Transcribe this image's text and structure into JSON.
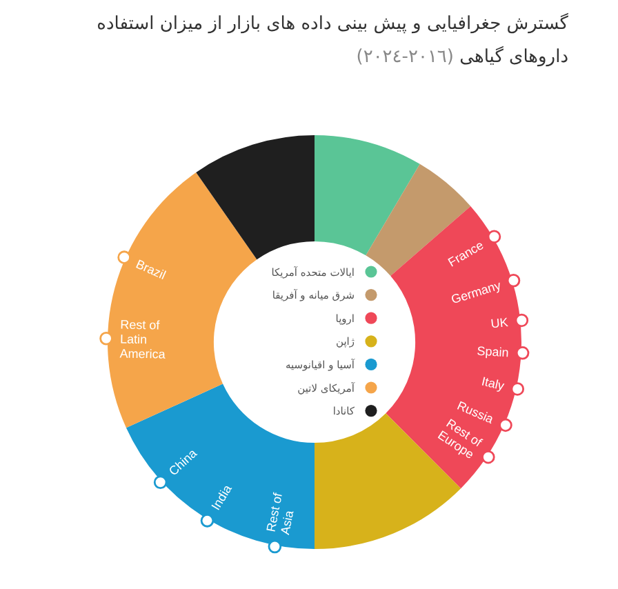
{
  "chart_data": {
    "type": "donut",
    "title": "گسترش جغرافیایی و پیش بینی داده های بازار از میزان استفاده داروهای گیاهی",
    "subtitle": "(٢٠١٦-٢٠٢٤)",
    "categories": [
      "ایالات متحده آمریکا",
      "شرق میانه و آفریقا",
      "اروپا",
      "ژاپن",
      "آسیا و اقیانوسیه",
      "آمریکای لاتین",
      "کانادا"
    ],
    "values": [
      8.5,
      5.1,
      23.9,
      12.5,
      18.2,
      22.1,
      9.7
    ],
    "colors": [
      "#5ac596",
      "#c49a6c",
      "#ef4858",
      "#d7b21b",
      "#1a9ad0",
      "#f5a54a",
      "#1f1f1f"
    ],
    "legend": "center",
    "annotations": [
      "France",
      "Germany",
      "UK",
      "Spain",
      "Italy",
      "Russia",
      "Rest of Europe",
      "Rest of Asia",
      "India",
      "China",
      "Rest of Latin America",
      "Brazil"
    ]
  }
}
